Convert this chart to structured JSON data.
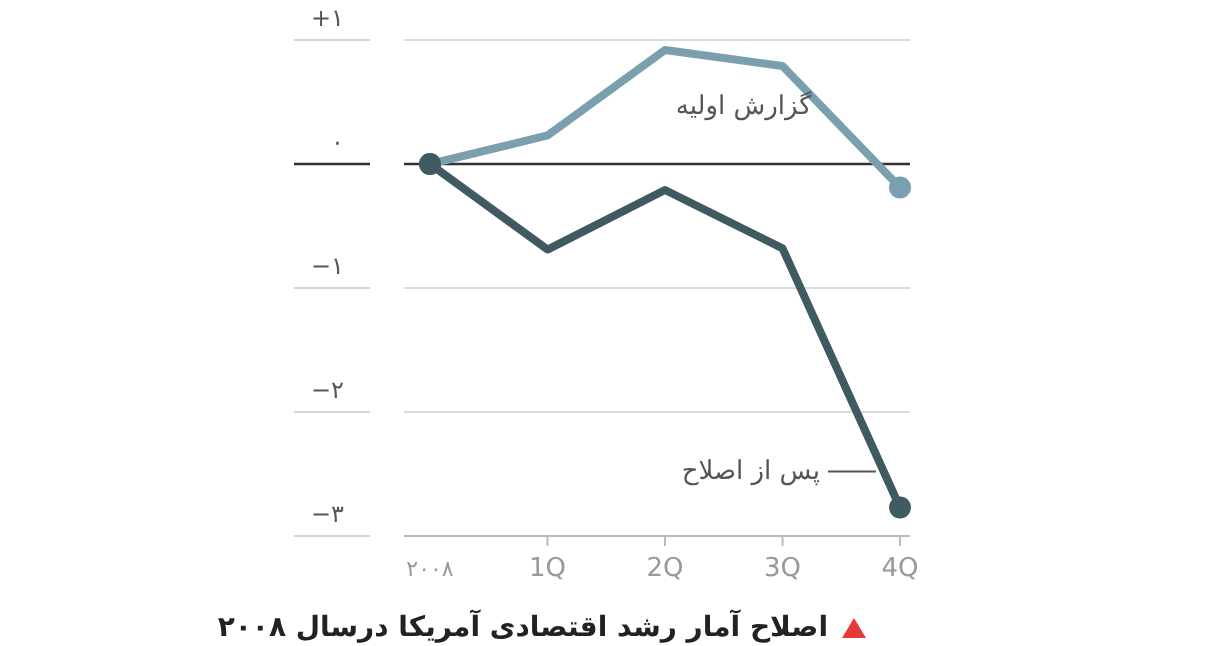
{
  "chart_data": {
    "type": "line",
    "title": "اصلاح آمار رشد اقتصادی آمریکا درسال ۲۰۰۸",
    "categories": [
      "۲۰۰۸",
      "1Q",
      "2Q",
      "3Q",
      "4Q"
    ],
    "series": [
      {
        "name": "گزارش اولیه",
        "color": "#7a9fae",
        "values": [
          0,
          0.23,
          0.92,
          0.79,
          -0.19
        ]
      },
      {
        "name": "پس از اصلاح",
        "color": "#3f5a61",
        "values": [
          0,
          -0.69,
          -0.21,
          -0.68,
          -2.77
        ]
      }
    ],
    "ylim": [
      -3,
      1
    ],
    "yticks": [
      {
        "value": 1,
        "label": "+۱"
      },
      {
        "value": 0,
        "label": "۰"
      },
      {
        "value": -1,
        "label": "−۱"
      },
      {
        "value": -2,
        "label": "−۲"
      },
      {
        "value": -3,
        "label": "−۳"
      }
    ],
    "grid": "y",
    "ref_lines": [
      {
        "axis": "y",
        "value": 0,
        "color": "#333333"
      }
    ],
    "line_style": "solid"
  }
}
